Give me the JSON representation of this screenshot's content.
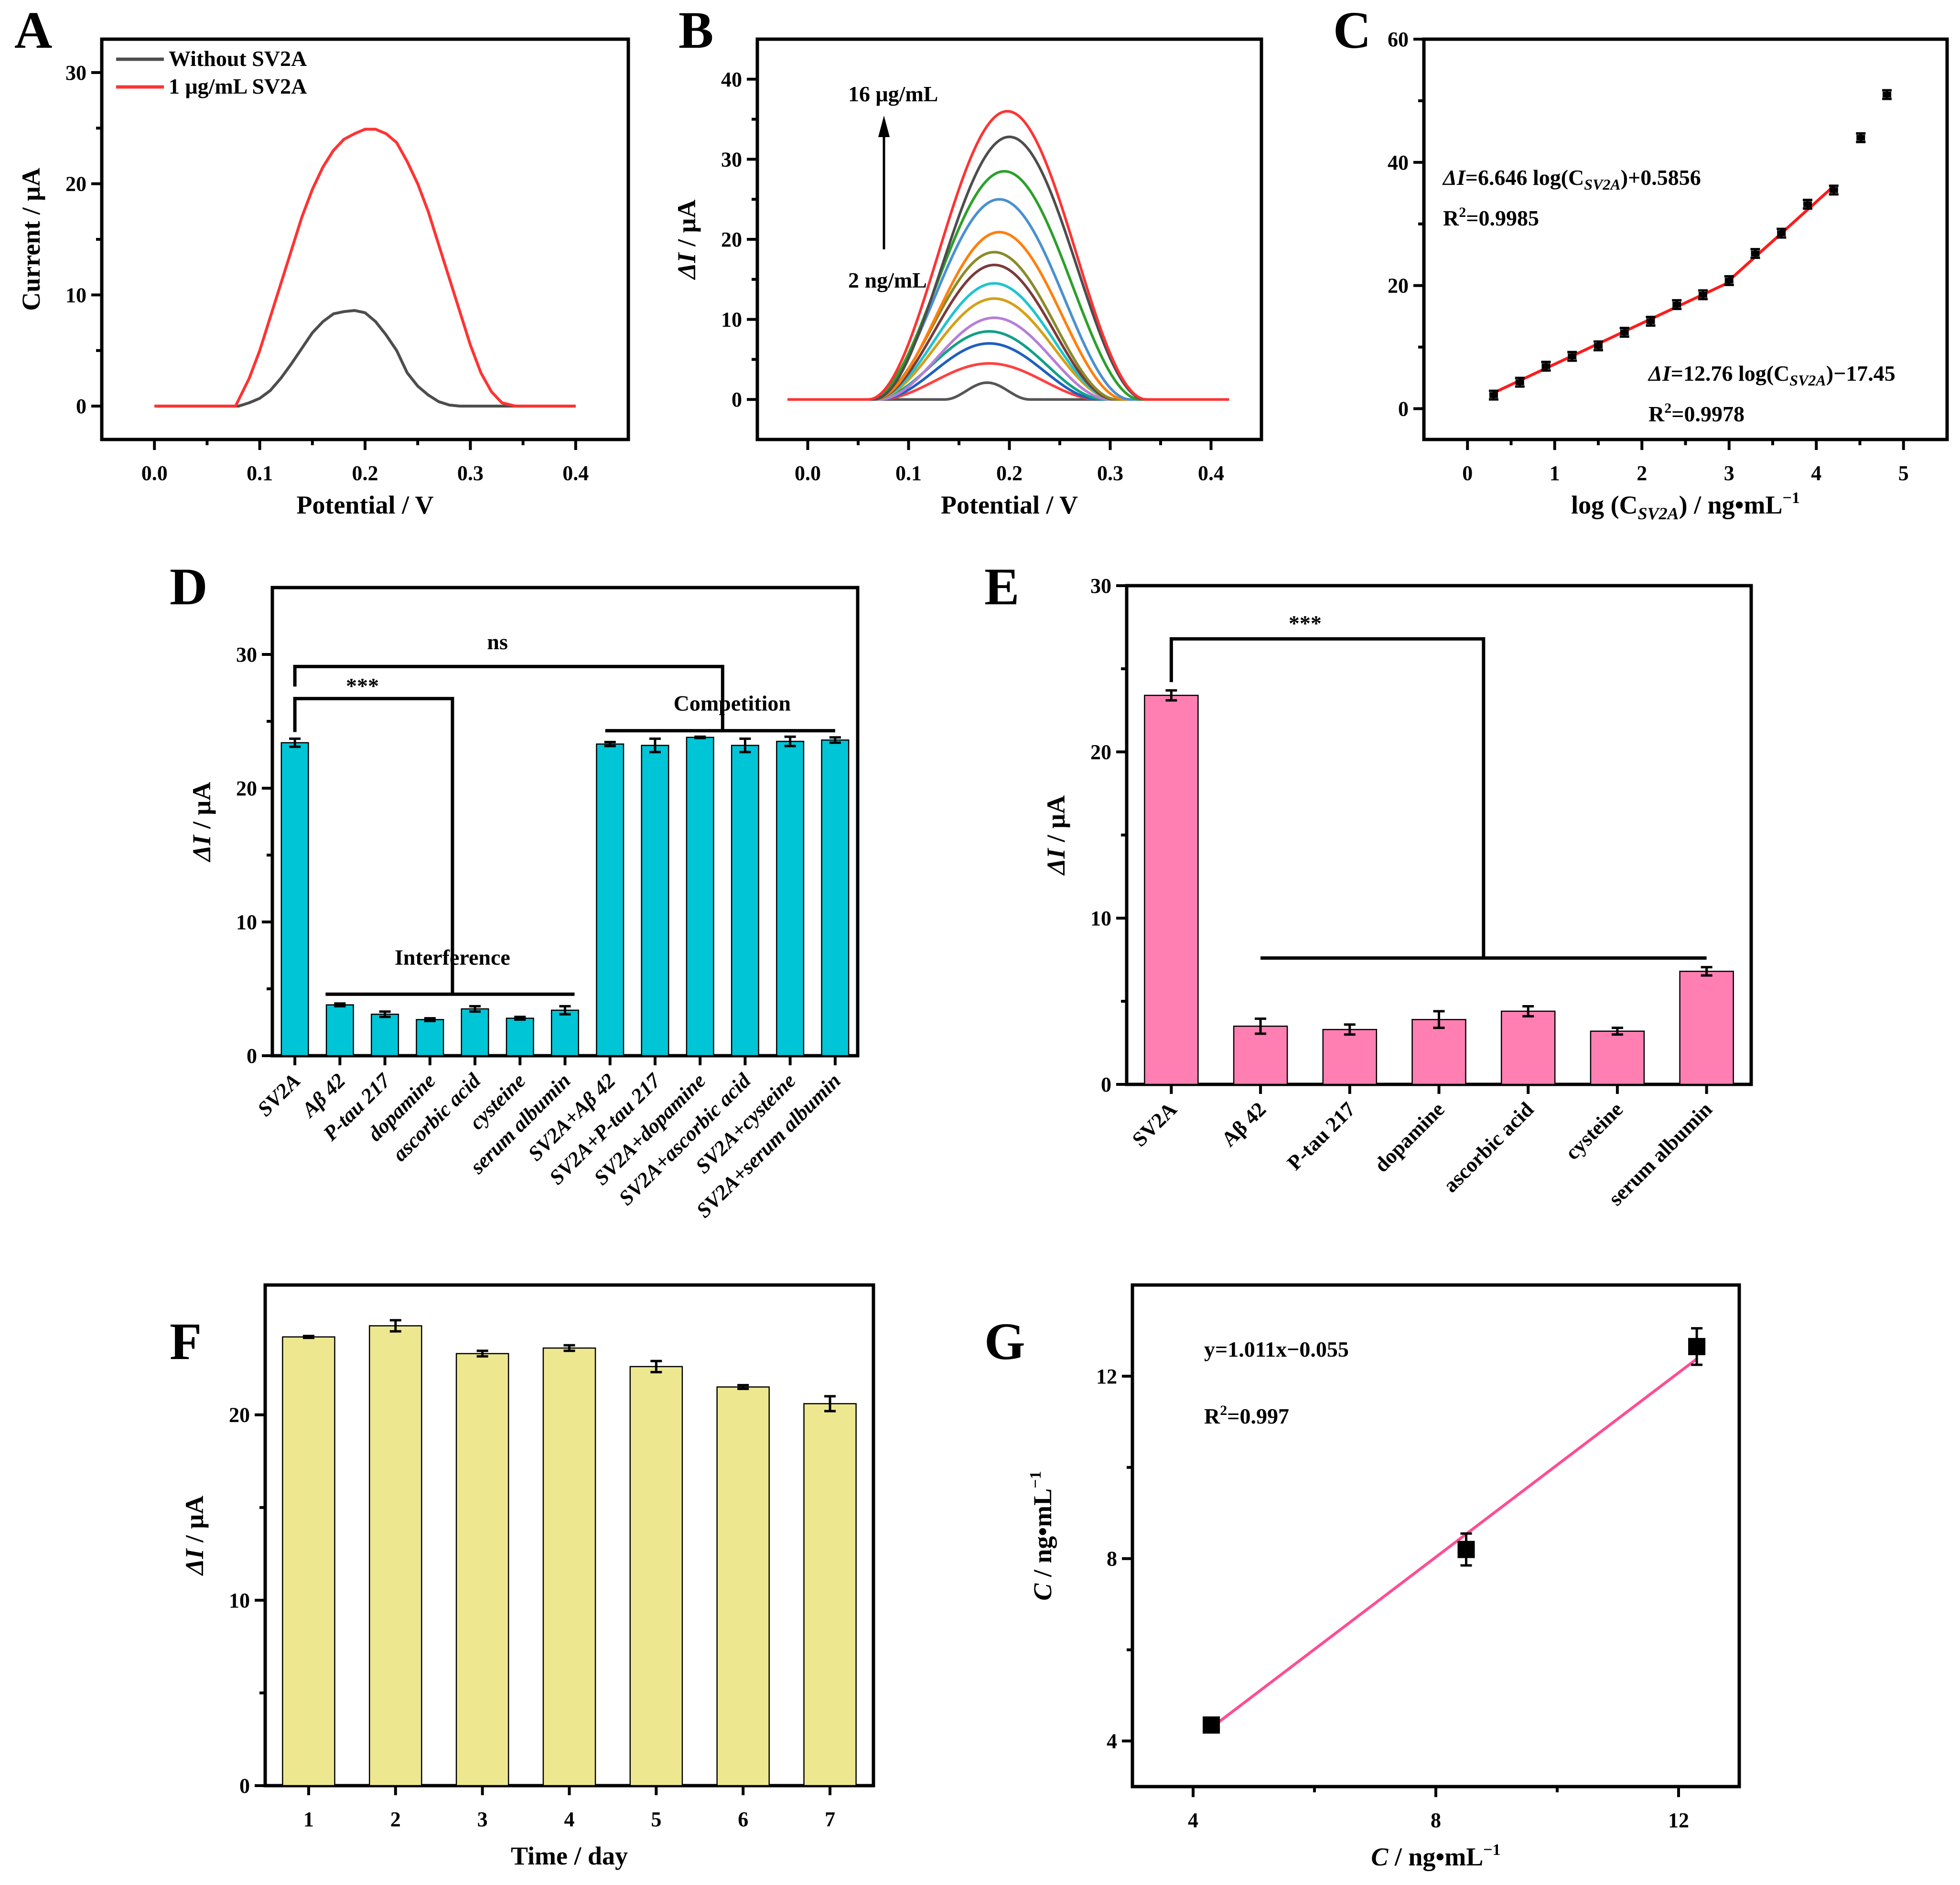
{
  "figure": {
    "panels": [
      "A",
      "B",
      "C",
      "D",
      "E",
      "F",
      "G"
    ]
  },
  "chart_data": [
    {
      "panel": "A",
      "type": "line",
      "xlabel": "Potential / V",
      "ylabel": "Current / μA",
      "xlim": [
        -0.05,
        0.45
      ],
      "ylim": [
        -3,
        33
      ],
      "xticks": [
        0.0,
        0.1,
        0.2,
        0.3,
        0.4
      ],
      "xtick_labels": [
        "0.0",
        "0.1",
        "0.2",
        "0.3",
        "0.4"
      ],
      "yticks": [
        0,
        10,
        20,
        30
      ],
      "ytick_labels": [
        "0",
        "10",
        "20",
        "30"
      ],
      "legend": "top-left",
      "series": [
        {
          "name": "Without SV2A",
          "color": "#4d4d4d",
          "x": [
            0.0,
            0.08,
            0.09,
            0.1,
            0.11,
            0.12,
            0.13,
            0.14,
            0.15,
            0.16,
            0.17,
            0.18,
            0.19,
            0.2,
            0.21,
            0.22,
            0.23,
            0.24,
            0.25,
            0.26,
            0.27,
            0.28,
            0.29,
            0.3,
            0.4
          ],
          "y": [
            0,
            0,
            0.3,
            0.7,
            1.4,
            2.5,
            3.8,
            5.2,
            6.6,
            7.6,
            8.3,
            8.5,
            8.6,
            8.4,
            7.6,
            6.4,
            5.0,
            3.0,
            1.8,
            1.0,
            0.4,
            0.1,
            0,
            0,
            0
          ]
        },
        {
          "name": "1 μg/mL SV2A",
          "color": "#ff3333",
          "x": [
            0.0,
            0.077,
            0.09,
            0.1,
            0.11,
            0.12,
            0.13,
            0.14,
            0.15,
            0.16,
            0.17,
            0.18,
            0.19,
            0.2,
            0.21,
            0.22,
            0.23,
            0.24,
            0.25,
            0.26,
            0.27,
            0.28,
            0.29,
            0.3,
            0.31,
            0.32,
            0.33,
            0.343,
            0.4
          ],
          "y": [
            0,
            0,
            2.5,
            5.0,
            8.0,
            11.0,
            14.0,
            17.0,
            19.5,
            21.5,
            23.0,
            24.0,
            24.5,
            24.9,
            24.9,
            24.5,
            23.7,
            22.0,
            20.0,
            17.5,
            14.5,
            11.5,
            8.5,
            5.5,
            3.0,
            1.3,
            0.3,
            0,
            0
          ]
        }
      ]
    },
    {
      "panel": "B",
      "type": "line",
      "xlabel": "ΔI / μA",
      "xlabel_note": "x-axis: Potential / V",
      "x_axis_title": "Potential / V",
      "y_axis_title": "ΔI / μA",
      "xlim": [
        -0.05,
        0.45
      ],
      "ylim": [
        -5,
        45
      ],
      "xticks": [
        0.0,
        0.1,
        0.2,
        0.3,
        0.4
      ],
      "xtick_labels": [
        "0.0",
        "0.1",
        "0.2",
        "0.3",
        "0.4"
      ],
      "yticks": [
        0,
        10,
        20,
        30,
        40
      ],
      "ytick_labels": [
        "0",
        "10",
        "20",
        "30",
        "40"
      ],
      "annotations": {
        "top": "16 μg/mL",
        "bottom": "2 ng/mL"
      },
      "series": [
        {
          "name": "c1",
          "color": "#555555",
          "peak": 2.1,
          "center": 0.178,
          "halfwidth": 0.042
        },
        {
          "name": "c2",
          "color": "#ff4040",
          "peak": 4.5,
          "center": 0.18,
          "halfwidth": 0.11
        },
        {
          "name": "c3",
          "color": "#1f5fbf",
          "peak": 7.0,
          "center": 0.18,
          "halfwidth": 0.11
        },
        {
          "name": "c4",
          "color": "#12a085",
          "peak": 8.5,
          "center": 0.18,
          "halfwidth": 0.115
        },
        {
          "name": "c5",
          "color": "#b57fd6",
          "peak": 10.2,
          "center": 0.185,
          "halfwidth": 0.115
        },
        {
          "name": "c6",
          "color": "#d4a017",
          "peak": 12.6,
          "center": 0.185,
          "halfwidth": 0.12
        },
        {
          "name": "c7",
          "color": "#1fc4cf",
          "peak": 14.5,
          "center": 0.185,
          "halfwidth": 0.12
        },
        {
          "name": "c8",
          "color": "#7a3b3b",
          "peak": 16.8,
          "center": 0.185,
          "halfwidth": 0.12
        },
        {
          "name": "c9",
          "color": "#8a8a2a",
          "peak": 18.4,
          "center": 0.185,
          "halfwidth": 0.122
        },
        {
          "name": "c10",
          "color": "#ff7f0e",
          "peak": 20.9,
          "center": 0.19,
          "halfwidth": 0.125
        },
        {
          "name": "c11",
          "color": "#4a90d0",
          "peak": 25.0,
          "center": 0.19,
          "halfwidth": 0.13
        },
        {
          "name": "c12",
          "color": "#2ca02c",
          "peak": 28.5,
          "center": 0.195,
          "halfwidth": 0.135
        },
        {
          "name": "c13",
          "color": "#4d4d4d",
          "peak": 32.8,
          "center": 0.2,
          "halfwidth": 0.135
        },
        {
          "name": "c14",
          "color": "#ff3333",
          "peak": 36.0,
          "center": 0.198,
          "halfwidth": 0.138
        }
      ]
    },
    {
      "panel": "C",
      "type": "scatter",
      "xlabel": "log (C",
      "xlabel_sub": "SV2A",
      "xlabel_tail": ") / ng•mL",
      "xlabel_sup": "−1",
      "ylabel": "ΔI / μA",
      "xlim": [
        -0.5,
        5.5
      ],
      "ylim": [
        -5,
        60
      ],
      "xticks": [
        0,
        1,
        2,
        3,
        4,
        5
      ],
      "xtick_labels": [
        "0",
        "1",
        "2",
        "3",
        "4",
        "5"
      ],
      "yticks": [
        0,
        20,
        40,
        60
      ],
      "ytick_labels": [
        "0",
        "20",
        "40",
        "60"
      ],
      "points": {
        "x": [
          0.3,
          0.6,
          0.9,
          1.2,
          1.5,
          1.8,
          2.1,
          2.4,
          2.7,
          3.0,
          3.3,
          3.6,
          3.9,
          4.2,
          4.51,
          4.81
        ],
        "y": [
          2.2,
          4.3,
          6.9,
          8.5,
          10.2,
          12.4,
          14.2,
          16.9,
          18.5,
          20.8,
          25.2,
          28.5,
          33.2,
          35.5,
          44.0,
          51.0
        ]
      },
      "fits": [
        {
          "equation_prefix": "ΔI",
          "equation": "=6.646 log(C",
          "sub": "SV2A",
          "tail": ")+0.5856",
          "r2_label": "R",
          "r2_value": "=0.9985",
          "slope": 6.646,
          "intercept": 0.5856,
          "xrange": [
            0.3,
            3.0
          ],
          "color": "#ff1a1a"
        },
        {
          "equation_prefix": "ΔI",
          "equation": "=12.76 log(C",
          "sub": "SV2A",
          "tail": ")−17.45",
          "r2_label": "R",
          "r2_value": "=0.9978",
          "slope": 12.76,
          "intercept": -17.45,
          "xrange": [
            3.0,
            4.2
          ],
          "color": "#ff1a1a"
        }
      ]
    },
    {
      "panel": "D",
      "type": "bar",
      "ylabel": "ΔI / μA",
      "ylim": [
        0,
        35
      ],
      "yticks": [
        0,
        10,
        20,
        30
      ],
      "ytick_labels": [
        "0",
        "10",
        "20",
        "30"
      ],
      "color": "#00c5d6",
      "categories": [
        "SV2A",
        "Aβ 42",
        "P-tau 217",
        "dopamine",
        "ascorbic acid",
        "cysteine",
        "serum albumin",
        "SV2A+Aβ 42",
        "SV2A+P-tau 217",
        "SV2A+dopamine",
        "SV2A+ascorbic acid",
        "SV2A+cysteine",
        "SV2A+serum albumin"
      ],
      "values": [
        23.4,
        3.8,
        3.1,
        2.7,
        3.5,
        2.8,
        3.4,
        23.3,
        23.2,
        23.8,
        23.2,
        23.5,
        23.6
      ],
      "errors": [
        0.3,
        0.1,
        0.2,
        0.1,
        0.2,
        0.1,
        0.3,
        0.15,
        0.5,
        0.05,
        0.5,
        0.35,
        0.2
      ],
      "group_labels": {
        "interference": "Interference",
        "competition": "Competition"
      },
      "significance": {
        "interference": "***",
        "competition": "ns"
      }
    },
    {
      "panel": "E",
      "type": "bar",
      "ylabel": "ΔI / μA",
      "ylim": [
        0,
        30
      ],
      "yticks": [
        0,
        10,
        20,
        30
      ],
      "ytick_labels": [
        "0",
        "10",
        "20",
        "30"
      ],
      "color": "#ff7fb3",
      "categories": [
        "SV2A",
        "Aβ 42",
        "P-tau 217",
        "dopamine",
        "ascorbic acid",
        "cysteine",
        "serum albumin"
      ],
      "values": [
        23.4,
        3.5,
        3.3,
        3.9,
        4.4,
        3.2,
        6.8
      ],
      "errors": [
        0.3,
        0.45,
        0.3,
        0.5,
        0.3,
        0.2,
        0.25
      ],
      "significance": "***"
    },
    {
      "panel": "F",
      "type": "bar",
      "xlabel": "Time / day",
      "ylabel": "ΔI / μA",
      "ylim": [
        0,
        27
      ],
      "yticks": [
        0,
        10,
        20
      ],
      "ytick_labels": [
        "0",
        "10",
        "20"
      ],
      "color": "#ede890",
      "categories": [
        "1",
        "2",
        "3",
        "4",
        "5",
        "6",
        "7"
      ],
      "values": [
        24.2,
        24.8,
        23.3,
        23.6,
        22.6,
        21.5,
        20.6
      ],
      "errors": [
        0.05,
        0.3,
        0.15,
        0.15,
        0.3,
        0.1,
        0.4
      ]
    },
    {
      "panel": "G",
      "type": "scatter",
      "xlabel": "C",
      "xlabel_tail": " / ng•mL",
      "xlabel_sup": "−1",
      "ylabel": "C",
      "ylabel_tail": " / ng•mL",
      "ylabel_sup": "−1",
      "xlim": [
        3,
        13
      ],
      "ylim": [
        3,
        14
      ],
      "xticks": [
        4,
        8,
        12
      ],
      "xtick_labels": [
        "4",
        "8",
        "12"
      ],
      "yticks": [
        4,
        8,
        12
      ],
      "ytick_labels": [
        "4",
        "8",
        "12"
      ],
      "points": {
        "x": [
          4.3,
          8.5,
          12.3
        ],
        "y": [
          4.35,
          8.2,
          12.65
        ],
        "errors": [
          0.1,
          0.35,
          0.4
        ]
      },
      "fit": {
        "equation": "y=1.011x−0.055",
        "r2_label": "R",
        "r2_value": "=0.997",
        "slope": 1.011,
        "intercept": -0.055,
        "xrange": [
          4.3,
          12.3
        ],
        "color": "#ff4d94"
      }
    }
  ]
}
